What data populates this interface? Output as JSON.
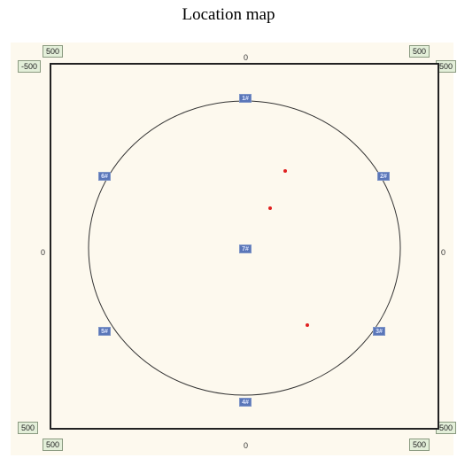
{
  "title": "Location map",
  "corner_labels": {
    "top_left_upper": "500",
    "top_left_lower": "-500",
    "top_right_upper": "500",
    "top_right_lower": "500",
    "bottom_left_upper": "500",
    "bottom_left_lower": "500",
    "bottom_right_upper": "500",
    "bottom_right_lower": "500"
  },
  "axis_labels": {
    "top": "0",
    "bottom": "0",
    "left": "0",
    "right": "0"
  },
  "sensors": [
    {
      "id": "1",
      "label": "1#"
    },
    {
      "id": "2",
      "label": "2#"
    },
    {
      "id": "3",
      "label": "3#"
    },
    {
      "id": "4",
      "label": "4#"
    },
    {
      "id": "5",
      "label": "5#"
    },
    {
      "id": "6",
      "label": "6#"
    },
    {
      "id": "7",
      "label": "7#"
    }
  ],
  "events": {
    "count": 3,
    "color": "#e02020"
  },
  "colors": {
    "panel_background": "#fdf9ee",
    "sensor_fill": "#5a76b8",
    "label_box_fill": "#e3efd9"
  }
}
